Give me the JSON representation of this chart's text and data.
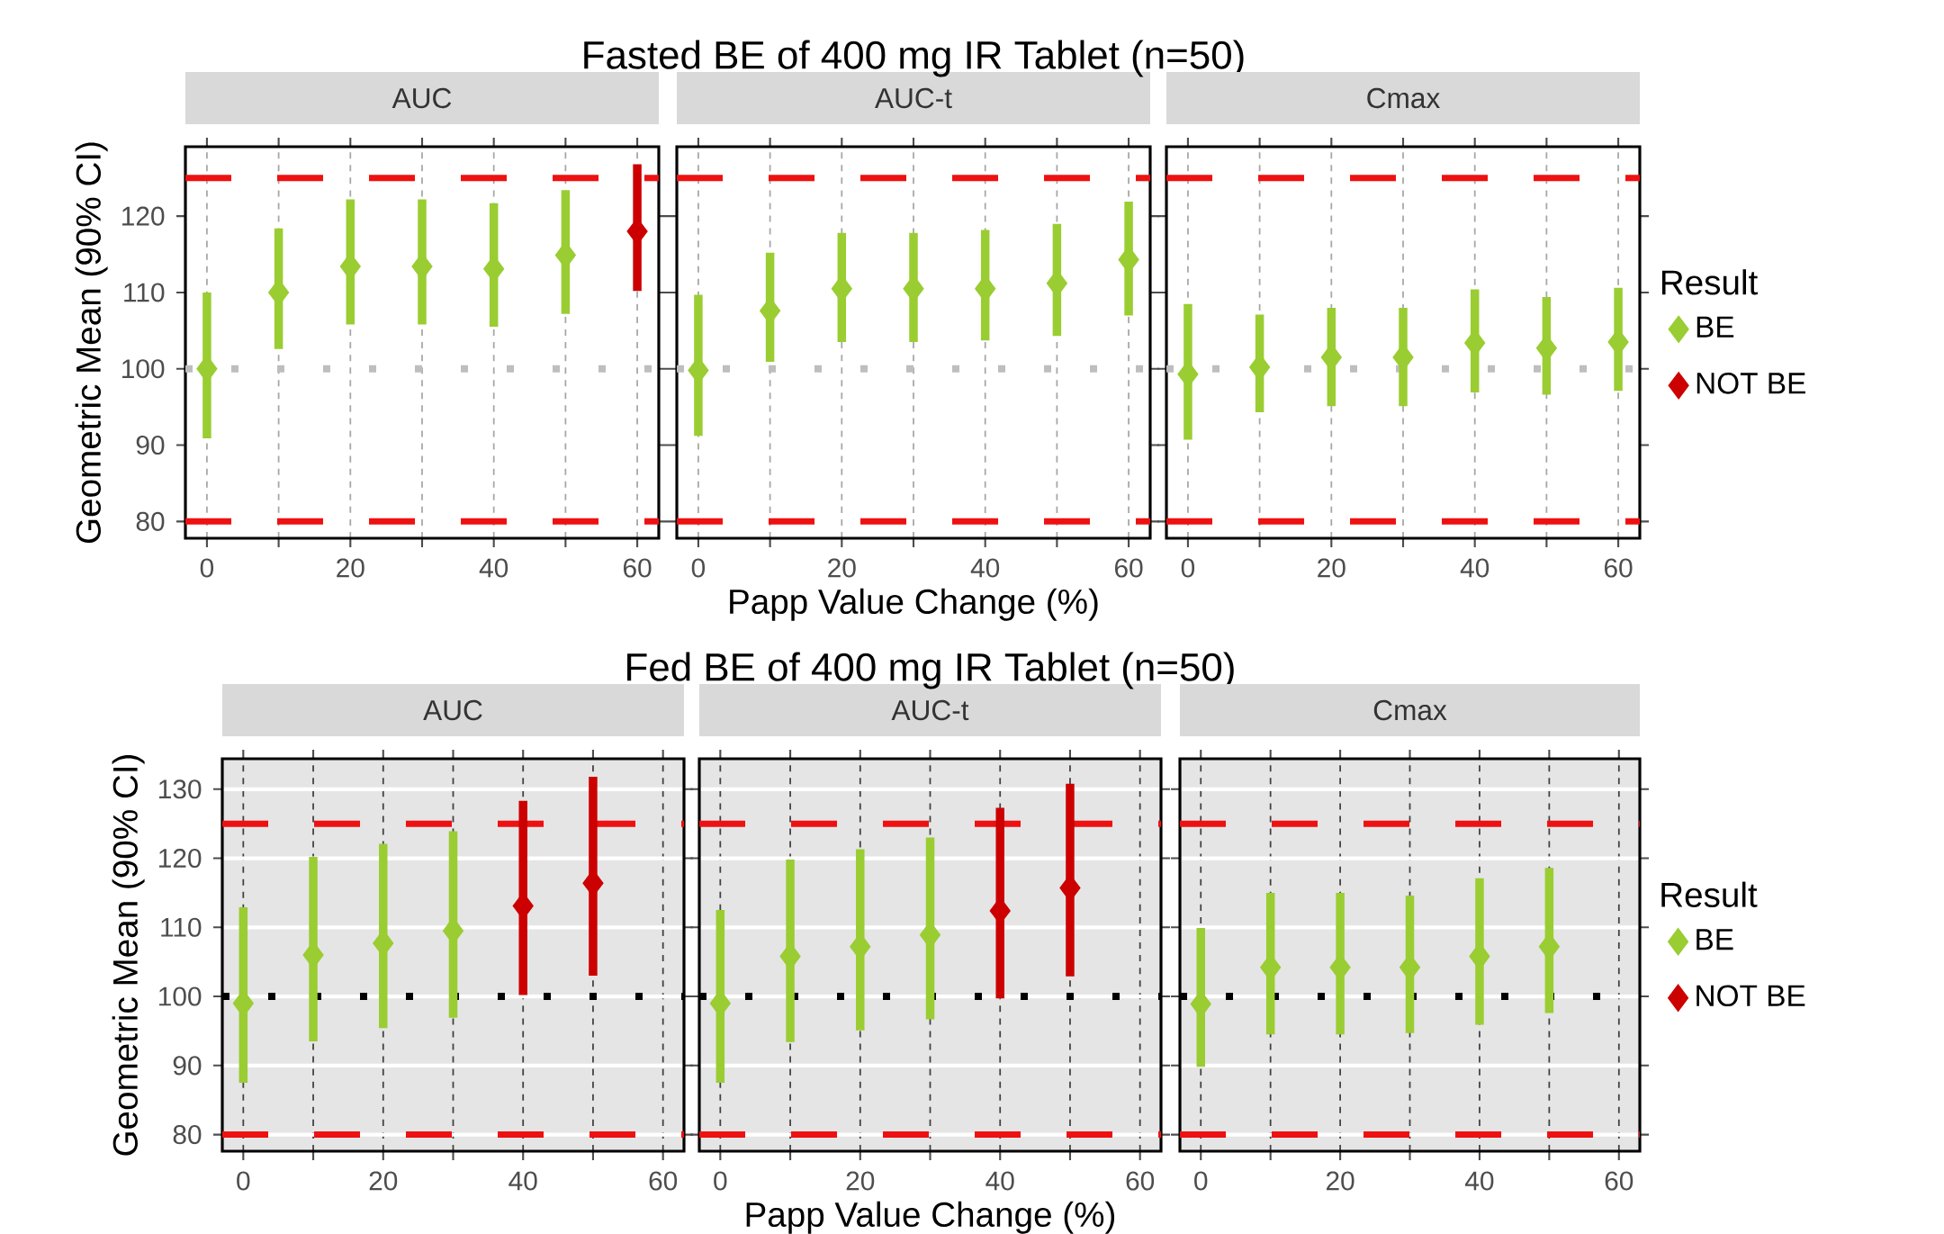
{
  "chart_data": [
    {
      "type": "scatter",
      "subtitle": "AUC",
      "ylabel": "Geometric Mean (90% CI)",
      "x": [
        0,
        10,
        20,
        30,
        40,
        50,
        60
      ],
      "marker": "diamond",
      "grid": "x",
      "series": [
        {
          "color": "#9acd32",
          "values": [
            100,
            110,
            113.4,
            113.4,
            113.1,
            114.9,
            null
          ],
          "errors": [
            [
              90.9,
              110.0
            ],
            [
              102.6,
              118.4
            ],
            [
              105.8,
              122.2
            ],
            [
              105.8,
              122.2
            ],
            [
              105.5,
              121.7
            ],
            [
              107.2,
              123.4
            ],
            null
          ]
        },
        {
          "color": "#cc0000",
          "values": [
            null,
            null,
            null,
            null,
            null,
            null,
            118.0
          ],
          "errors": [
            null,
            null,
            null,
            null,
            null,
            null,
            [
              110.2,
              126.8
            ]
          ]
        }
      ],
      "xlim": [
        -3,
        63
      ],
      "ylim": [
        77.8,
        129.1
      ],
      "xticks": [
        0,
        {
          "value": 10,
          "label": null
        },
        20,
        {
          "value": 30,
          "label": null
        },
        40,
        {
          "value": 50,
          "label": null
        },
        60
      ],
      "yticks": [
        80,
        90,
        100,
        110,
        120
      ],
      "ref_lines": [
        {
          "axis": "y",
          "value": 125,
          "color": "#ee1111",
          "line_style": "dashed"
        },
        {
          "axis": "y",
          "value": 80,
          "color": "#ee1111",
          "line_style": "dashed"
        },
        {
          "axis": "y",
          "value": 100,
          "color": "#bebebe",
          "line_style": "dotted"
        }
      ]
    },
    {
      "type": "scatter",
      "title": "Fasted BE of 400 mg IR Tablet (n=50)",
      "subtitle": "AUC-t",
      "xlabel": "Papp Value Change (%)",
      "x": [
        0,
        10,
        20,
        30,
        40,
        50,
        60
      ],
      "marker": "diamond",
      "grid": "x",
      "tick_labels": "x",
      "series": [
        {
          "color": "#9acd32",
          "values": [
            99.8,
            107.6,
            110.5,
            110.5,
            110.5,
            111.2,
            114.3
          ],
          "errors": [
            [
              91.2,
              109.7
            ],
            [
              100.9,
              115.2
            ],
            [
              103.5,
              117.8
            ],
            [
              103.5,
              117.8
            ],
            [
              103.7,
              118.2
            ],
            [
              104.3,
              119.0
            ],
            [
              107.0,
              121.9
            ]
          ]
        }
      ],
      "xlim": [
        -3,
        63
      ],
      "ylim": [
        77.8,
        129.1
      ],
      "xticks": [
        0,
        {
          "value": 10,
          "label": null
        },
        20,
        {
          "value": 30,
          "label": null
        },
        40,
        {
          "value": 50,
          "label": null
        },
        60
      ],
      "yticks": [
        80,
        90,
        100,
        110,
        120
      ],
      "ref_lines": [
        {
          "axis": "y",
          "value": 125,
          "color": "#ee1111",
          "line_style": "dashed"
        },
        {
          "axis": "y",
          "value": 80,
          "color": "#ee1111",
          "line_style": "dashed"
        },
        {
          "axis": "y",
          "value": 100,
          "color": "#bebebe",
          "line_style": "dotted"
        }
      ]
    },
    {
      "type": "scatter",
      "subtitle": "Cmax",
      "x": [
        0,
        10,
        20,
        30,
        40,
        50,
        60
      ],
      "marker": "diamond",
      "grid": "x",
      "tick_labels": "x",
      "legend": "right",
      "legend_title": "Result",
      "series": [
        {
          "name": "BE",
          "color": "#9acd32",
          "values": [
            99.3,
            100.2,
            101.5,
            101.5,
            103.4,
            102.7,
            103.5
          ],
          "errors": [
            [
              90.7,
              108.5
            ],
            [
              94.3,
              107.1
            ],
            [
              95.1,
              108.0
            ],
            [
              95.1,
              108.0
            ],
            [
              96.9,
              110.4
            ],
            [
              96.6,
              109.4
            ],
            [
              97.1,
              110.6
            ]
          ]
        },
        {
          "name": "NOT BE",
          "color": "#cc0000",
          "values": [
            null,
            null,
            null,
            null,
            null,
            null,
            null
          ],
          "errors": [
            null,
            null,
            null,
            null,
            null,
            null,
            null
          ]
        }
      ],
      "xlim": [
        -3,
        63
      ],
      "ylim": [
        77.8,
        129.1
      ],
      "xticks": [
        0,
        {
          "value": 10,
          "label": null
        },
        20,
        {
          "value": 30,
          "label": null
        },
        40,
        {
          "value": 50,
          "label": null
        },
        60
      ],
      "yticks": [
        80,
        90,
        100,
        110,
        120
      ],
      "ref_lines": [
        {
          "axis": "y",
          "value": 125,
          "color": "#ee1111",
          "line_style": "dashed"
        },
        {
          "axis": "y",
          "value": 80,
          "color": "#ee1111",
          "line_style": "dashed"
        },
        {
          "axis": "y",
          "value": 100,
          "color": "#bebebe",
          "line_style": "dotted"
        }
      ]
    },
    {
      "type": "scatter",
      "subtitle": "AUC",
      "ylabel": "Geometric Mean (90% CI)",
      "x": [
        0,
        10,
        20,
        30,
        40,
        50
      ],
      "marker": "diamond",
      "grid": true,
      "series": [
        {
          "color": "#9acd32",
          "values": [
            99.0,
            106.0,
            107.7,
            109.5,
            null,
            null
          ],
          "errors": [
            [
              87.5,
              112.9
            ],
            [
              93.5,
              120.2
            ],
            [
              95.4,
              122.1
            ],
            [
              96.9,
              123.9
            ],
            null,
            null
          ]
        },
        {
          "color": "#cc0000",
          "values": [
            null,
            null,
            null,
            null,
            113.1,
            116.4
          ],
          "errors": [
            null,
            null,
            null,
            null,
            [
              100.2,
              128.3
            ],
            [
              103.0,
              131.8
            ]
          ]
        }
      ],
      "xlim": [
        -3,
        63
      ],
      "ylim": [
        77.6,
        134.4
      ],
      "xticks": [
        0,
        {
          "value": 10,
          "label": null
        },
        20,
        {
          "value": 30,
          "label": null
        },
        40,
        {
          "value": 50,
          "label": null
        },
        60
      ],
      "yticks": [
        80,
        90,
        100,
        110,
        120,
        130
      ],
      "ref_lines": [
        {
          "axis": "y",
          "value": 125,
          "color": "#ee1111",
          "line_style": "dashed"
        },
        {
          "axis": "y",
          "value": 80,
          "color": "#ee1111",
          "line_style": "dashed"
        },
        {
          "axis": "y",
          "value": 100,
          "color": "#000000",
          "line_style": "dotted"
        }
      ]
    },
    {
      "type": "scatter",
      "title": "Fed BE of 400 mg IR Tablet (n=50)",
      "subtitle": "AUC-t",
      "xlabel": "Papp Value Change (%)",
      "x": [
        0,
        10,
        20,
        30,
        40,
        50
      ],
      "marker": "diamond",
      "grid": true,
      "tick_labels": "x",
      "series": [
        {
          "color": "#9acd32",
          "values": [
            99.0,
            105.8,
            107.2,
            108.9,
            null,
            null
          ],
          "errors": [
            [
              87.5,
              112.5
            ],
            [
              93.4,
              119.8
            ],
            [
              95.1,
              121.3
            ],
            [
              96.7,
              123.0
            ],
            null,
            null
          ]
        },
        {
          "color": "#cc0000",
          "values": [
            null,
            null,
            null,
            null,
            112.4,
            115.7
          ],
          "errors": [
            null,
            null,
            null,
            null,
            [
              99.7,
              127.3
            ],
            [
              102.9,
              130.8
            ]
          ]
        }
      ],
      "xlim": [
        -3,
        63
      ],
      "ylim": [
        77.6,
        134.4
      ],
      "xticks": [
        0,
        {
          "value": 10,
          "label": null
        },
        20,
        {
          "value": 30,
          "label": null
        },
        40,
        {
          "value": 50,
          "label": null
        },
        60
      ],
      "yticks": [
        80,
        90,
        100,
        110,
        120,
        130
      ],
      "ref_lines": [
        {
          "axis": "y",
          "value": 125,
          "color": "#ee1111",
          "line_style": "dashed"
        },
        {
          "axis": "y",
          "value": 80,
          "color": "#ee1111",
          "line_style": "dashed"
        },
        {
          "axis": "y",
          "value": 100,
          "color": "#000000",
          "line_style": "dotted"
        }
      ]
    },
    {
      "type": "scatter",
      "subtitle": "Cmax",
      "x": [
        0,
        10,
        20,
        30,
        40,
        50
      ],
      "marker": "diamond",
      "grid": true,
      "tick_labels": "x",
      "legend": "right",
      "legend_title": "Result",
      "series": [
        {
          "name": "BE",
          "color": "#9acd32",
          "values": [
            98.9,
            104.2,
            104.2,
            104.2,
            105.8,
            107.2
          ],
          "errors": [
            [
              89.8,
              109.9
            ],
            [
              94.5,
              115.0
            ],
            [
              94.5,
              115.0
            ],
            [
              94.7,
              114.6
            ],
            [
              95.9,
              117.1
            ],
            [
              97.6,
              118.6
            ]
          ]
        },
        {
          "name": "NOT BE",
          "color": "#cc0000",
          "values": [
            null,
            null,
            null,
            null,
            null,
            null
          ],
          "errors": [
            null,
            null,
            null,
            null,
            null,
            null
          ]
        }
      ],
      "xlim": [
        -3,
        63
      ],
      "ylim": [
        77.6,
        134.4
      ],
      "xticks": [
        0,
        {
          "value": 10,
          "label": null
        },
        20,
        {
          "value": 30,
          "label": null
        },
        40,
        {
          "value": 50,
          "label": null
        },
        60
      ],
      "yticks": [
        80,
        90,
        100,
        110,
        120,
        130
      ],
      "ref_lines": [
        {
          "axis": "y",
          "value": 125,
          "color": "#ee1111",
          "line_style": "dashed"
        },
        {
          "axis": "y",
          "value": 80,
          "color": "#ee1111",
          "line_style": "dashed"
        },
        {
          "axis": "y",
          "value": 100,
          "color": "#000000",
          "line_style": "dotted"
        }
      ]
    }
  ]
}
